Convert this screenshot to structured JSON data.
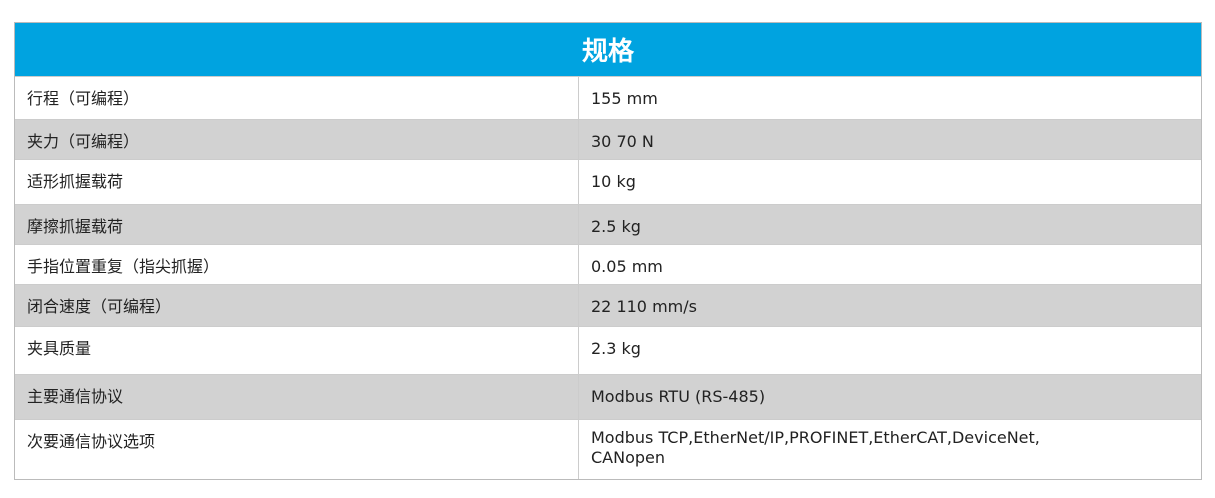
{
  "header": {
    "title": "规格"
  },
  "table": {
    "rows": [
      [
        "行程（可编程）",
        "155 mm"
      ],
      [
        "夹力（可编程）",
        "30 70 N"
      ],
      [
        "适形抓握载荷",
        "10 kg"
      ],
      [
        "摩擦抓握载荷",
        "2.5 kg"
      ],
      [
        "手指位置重复（指尖抓握）",
        "0.05 mm"
      ],
      [
        "闭合速度（可编程）",
        "22 110 mm/s"
      ],
      [
        "夹具质量",
        "2.3 kg"
      ],
      [
        "主要通信协议",
        "Modbus RTU (RS-485)"
      ],
      [
        "次要通信协议选项",
        "Modbus TCP,EtherNet/IP,PROFINET,EtherCAT,DeviceNet,\nCANopen"
      ]
    ]
  }
}
